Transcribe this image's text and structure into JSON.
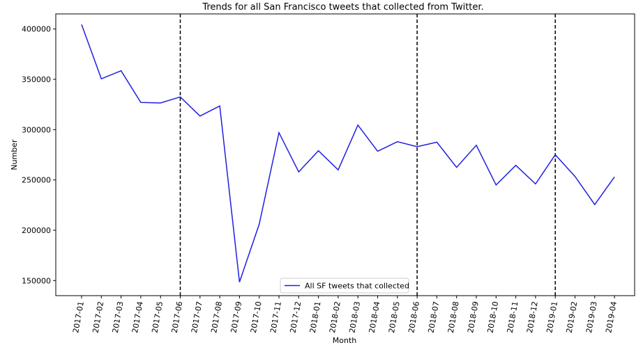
{
  "chart_data": {
    "type": "line",
    "title": "Trends for all San Francisco tweets that collected from Twitter.",
    "xlabel": "Month",
    "ylabel": "Number",
    "categories": [
      "2017-01",
      "2017-02",
      "2017-03",
      "2017-04",
      "2017-05",
      "2017-06",
      "2017-07",
      "2017-08",
      "2017-09",
      "2017-10",
      "2017-11",
      "2017-12",
      "2018-01",
      "2018-02",
      "2018-03",
      "2018-04",
      "2018-05",
      "2018-06",
      "2018-07",
      "2018-08",
      "2018-09",
      "2018-10",
      "2018-11",
      "2018-12",
      "2019-01",
      "2019-02",
      "2019-03",
      "2019-04"
    ],
    "series": [
      {
        "name": "All SF tweets that collected",
        "color": "#1f1fe0",
        "values": [
          404500,
          350500,
          358500,
          327000,
          326500,
          332500,
          313500,
          323500,
          148500,
          206000,
          297000,
          258000,
          279000,
          260000,
          304500,
          278500,
          288000,
          283000,
          287500,
          262500,
          284500,
          245000,
          264500,
          246000,
          275000,
          253500,
          225500,
          253000
        ]
      }
    ],
    "ylim": [
      135000,
      415000
    ],
    "yticks": [
      150000,
      200000,
      250000,
      300000,
      350000,
      400000
    ],
    "ytick_labels": [
      "150000",
      "200000",
      "250000",
      "300000",
      "350000",
      "400000"
    ],
    "vlines": [
      "2017-06",
      "2018-06",
      "2019-01"
    ],
    "vline_style": "dashed",
    "vline_color": "#000000",
    "grid": false,
    "legend_placement": "lower-center"
  }
}
